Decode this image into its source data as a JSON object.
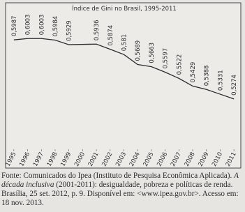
{
  "chart_data": {
    "type": "line",
    "title": "Índice de Gini no Brasil, 1995-2011",
    "x": [
      1995,
      1996,
      1997,
      1998,
      1999,
      2001,
      2002,
      2003,
      2004,
      2005,
      2006,
      2007,
      2008,
      2009,
      2010,
      2011
    ],
    "series": [
      {
        "color": "#2b2b2b",
        "values": [
          0.5987,
          0.6003,
          0.6003,
          0.5984,
          0.5929,
          0.5936,
          0.5874,
          0.581,
          0.5689,
          0.5663,
          0.5597,
          0.5522,
          0.5429,
          0.5388,
          0.5331,
          0.5274
        ],
        "value_labels": [
          "0,5987",
          "0,6003",
          "0,6003",
          "0,5984",
          "0,5929",
          "0,5936",
          "0,5874",
          "0,581",
          "0,5689",
          "0,5663",
          "0,5597",
          "0,5522",
          "0,5429",
          "0,5388",
          "0,5331",
          "0,5274"
        ]
      }
    ],
    "xlim": [
      1994.5,
      2011.5
    ],
    "xticks": [
      1995,
      1996,
      1997,
      1998,
      1999,
      2000,
      2001,
      2002,
      2003,
      2004,
      2005,
      2006,
      2007,
      2008,
      2009,
      2010,
      2011
    ],
    "ylim": [
      0.47,
      0.63
    ],
    "grid": false
  },
  "source": {
    "prefix": "Fonte: Comunicados do Ipea (Instituto de Pesquisa Econômica Aplicada).",
    "title": "A década inclusiva",
    "rest": "(2001-2011): desigualdade, pobreza e políticas de renda. Brasília, 25 set. 2012, p. 9. Disponível em: <www.ipea.gov.br>. Acesso em: 18 nov. 2013."
  }
}
